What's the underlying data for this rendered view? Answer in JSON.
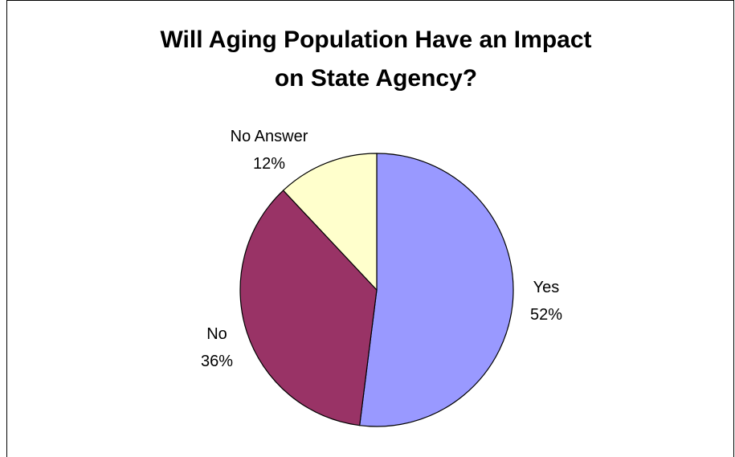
{
  "chart_data": {
    "type": "pie",
    "title_lines": [
      "Will Aging Population Have an Impact",
      "on State Agency?"
    ],
    "slices": [
      {
        "label": "Yes",
        "value": 52,
        "value_label": "52%",
        "color": "#9999FF"
      },
      {
        "label": "No",
        "value": 36,
        "value_label": "36%",
        "color": "#993366"
      },
      {
        "label": "No Answer",
        "value": 12,
        "value_label": "12%",
        "color": "#FFFFCC"
      }
    ]
  }
}
